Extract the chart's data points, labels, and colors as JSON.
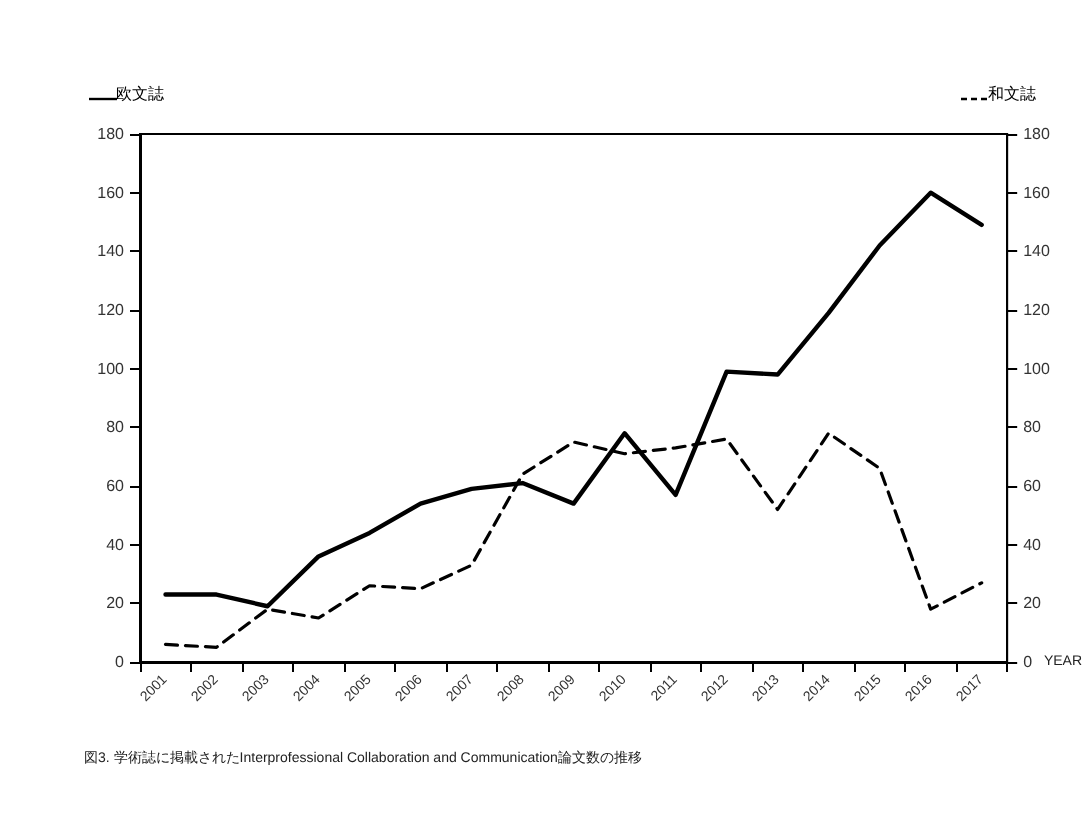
{
  "chart_data": {
    "type": "line",
    "xlabel": "YEAR",
    "annotations": [
      "図3. 学術誌に掲載されたInterprofessional Collaboration and Communication論文数の推移"
    ],
    "categories": [
      "2001",
      "2002",
      "2003",
      "2004",
      "2005",
      "2006",
      "2007",
      "2008",
      "2009",
      "2010",
      "2011",
      "2012",
      "2013",
      "2014",
      "2015",
      "2016",
      "2017"
    ],
    "series": [
      {
        "name": "欧文誌",
        "color": "#000000",
        "line_style": "solid",
        "values": [
          23,
          23,
          19,
          36,
          44,
          54,
          59,
          61,
          54,
          78,
          57,
          99,
          98,
          119,
          142,
          160,
          149
        ]
      },
      {
        "name": "和文誌",
        "color": "#000000",
        "line_style": "dashed",
        "axis": "y2",
        "values": [
          6,
          5,
          18,
          15,
          26,
          25,
          33,
          64,
          75,
          71,
          73,
          76,
          52,
          78,
          66,
          18,
          27
        ]
      }
    ],
    "ylim": [
      0,
      180
    ],
    "yticks": [
      0,
      20,
      40,
      60,
      80,
      100,
      120,
      140,
      160,
      180
    ],
    "y2lim": [
      0,
      180
    ],
    "y2ticks": [
      0,
      20,
      40,
      60,
      80,
      100,
      120,
      140,
      160,
      180
    ],
    "grid": false,
    "legend": "top",
    "marker": "none"
  }
}
